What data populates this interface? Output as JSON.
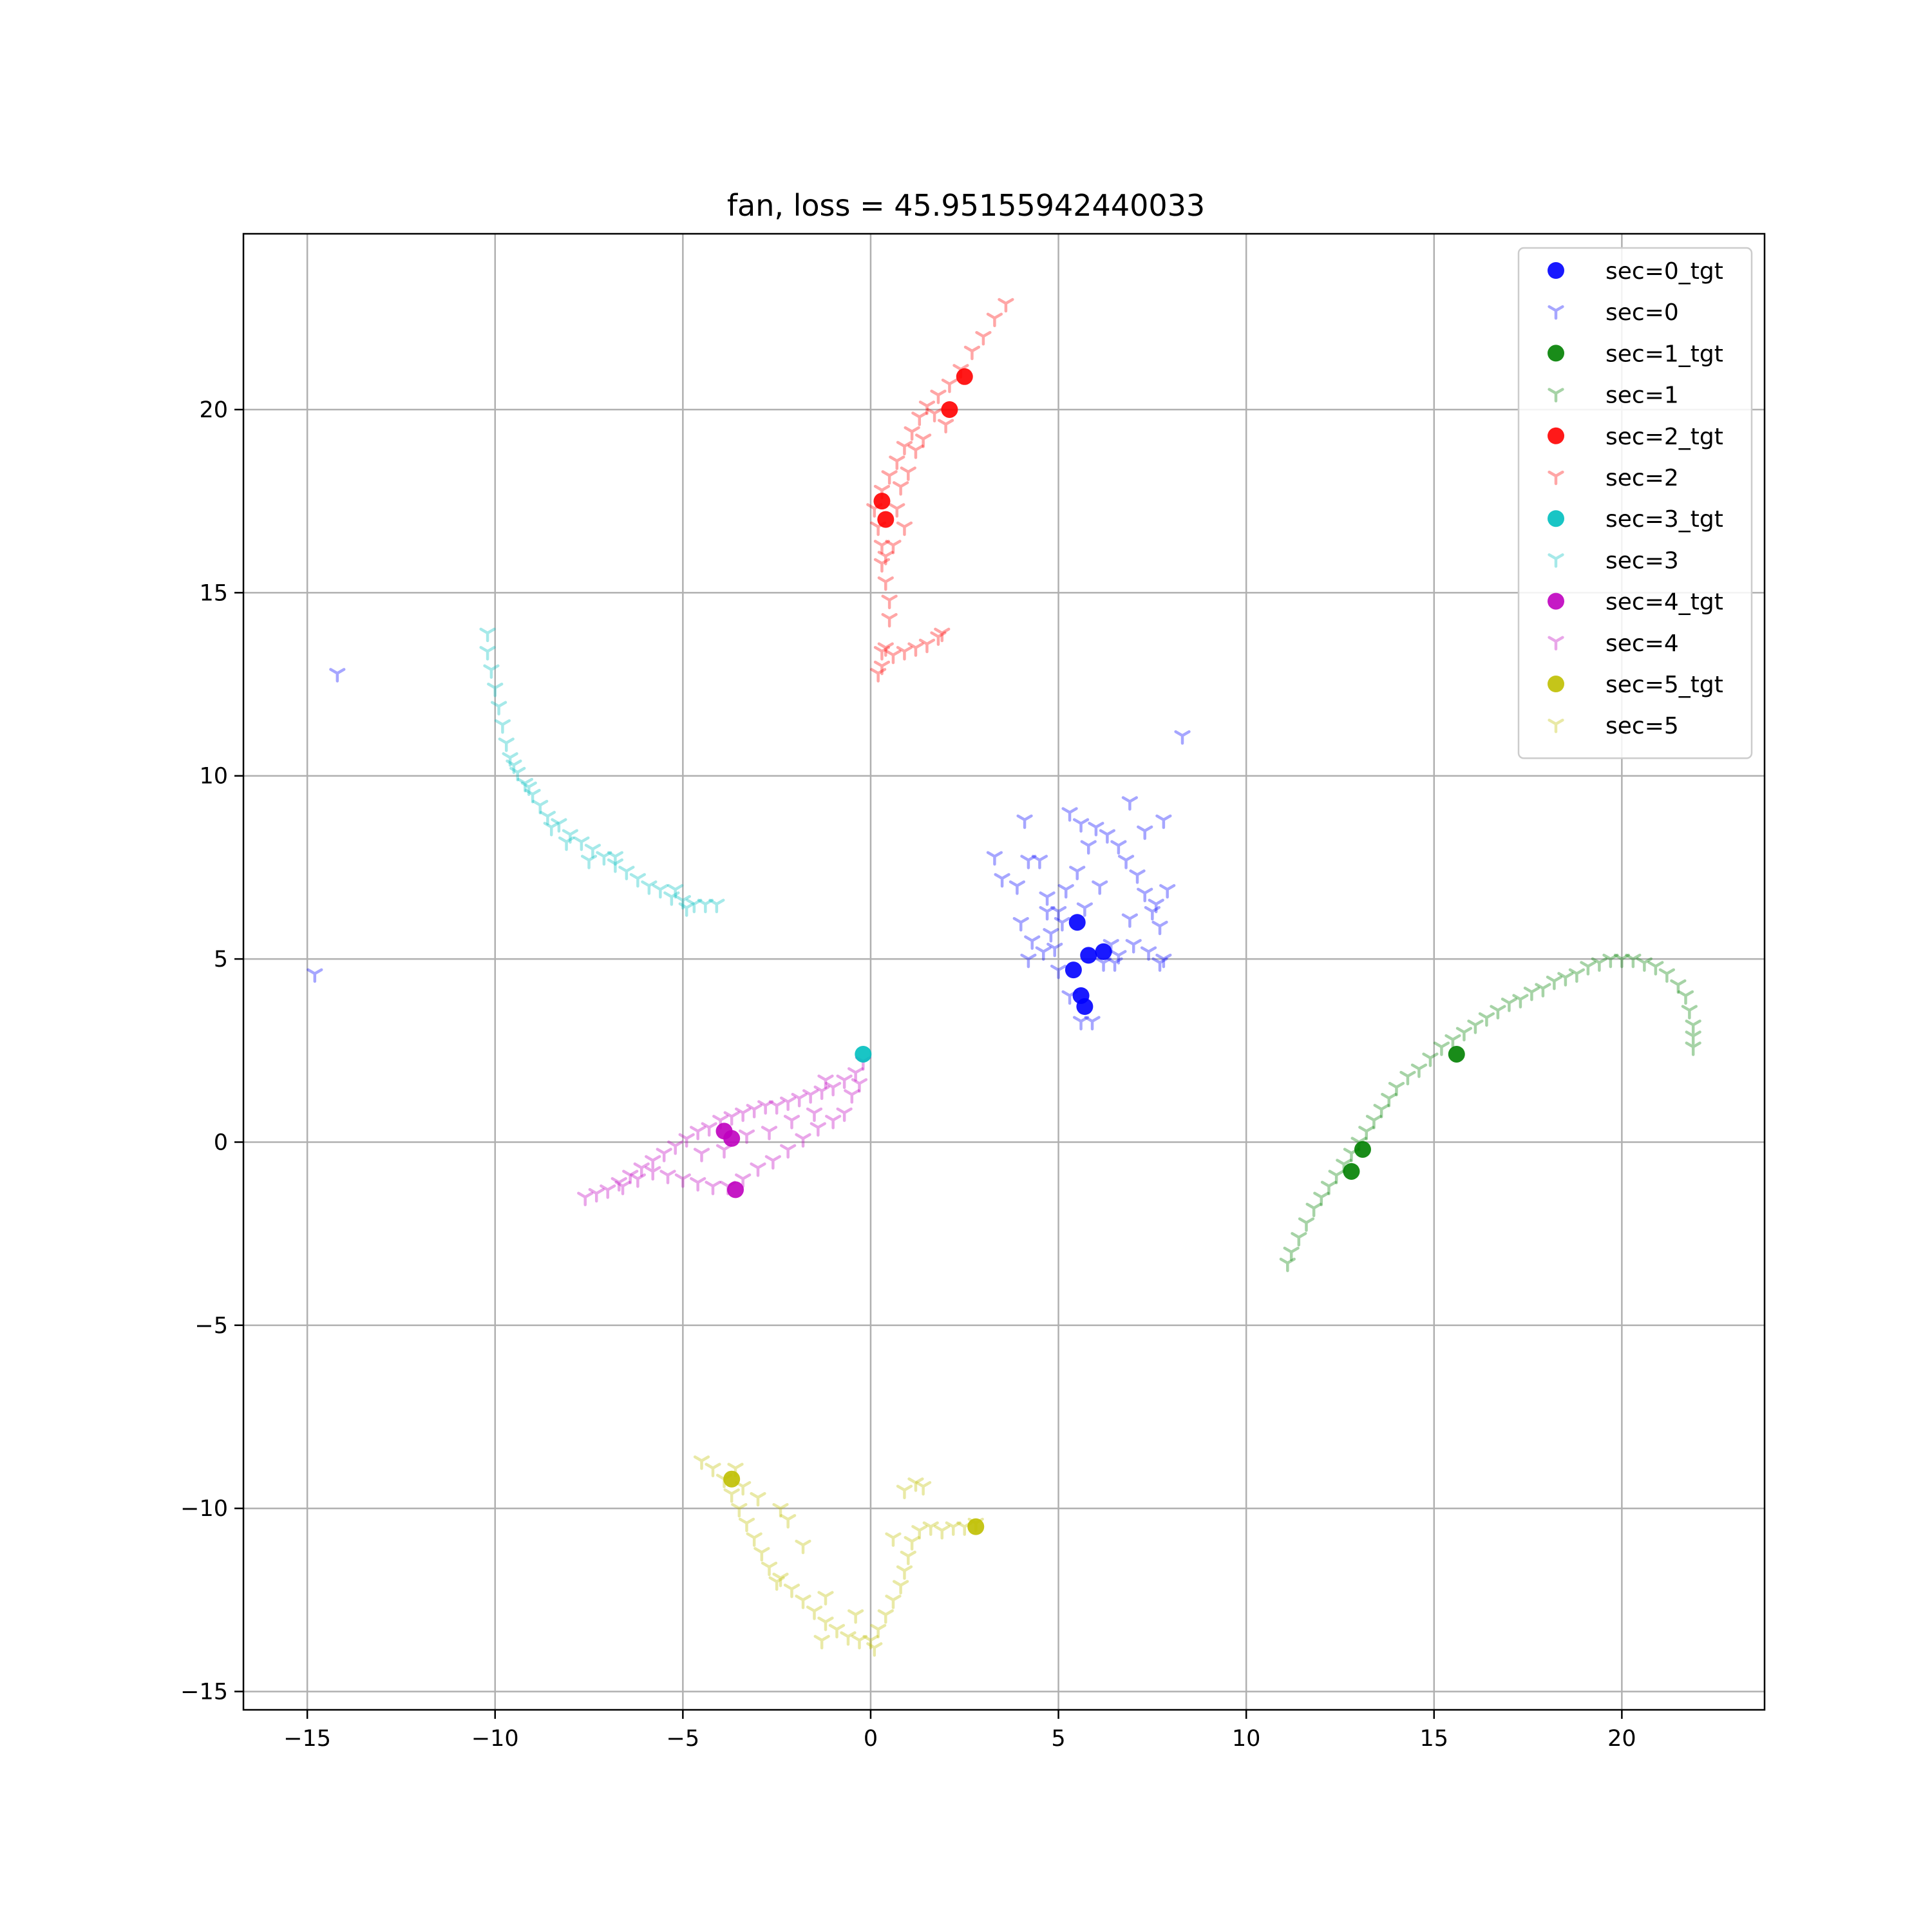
{
  "chart_data": {
    "type": "scatter",
    "title": "fan, loss = 45.95155942440033",
    "xlabel": "",
    "ylabel": "",
    "xlim": [
      -16.7,
      23.8
    ],
    "ylim": [
      -15.5,
      24.8
    ],
    "xticks": [
      -15,
      -10,
      -5,
      0,
      5,
      10,
      15,
      20
    ],
    "xtick_labels": [
      "−15",
      "−10",
      "−5",
      "0",
      "5",
      "10",
      "15",
      "20"
    ],
    "yticks": [
      -15,
      -10,
      -5,
      0,
      5,
      10,
      15,
      20
    ],
    "ytick_labels": [
      "−15",
      "−10",
      "−5",
      "0",
      "5",
      "10",
      "15",
      "20"
    ],
    "grid": true,
    "legend_position": "top-right",
    "series": [
      {
        "name": "sec=0_tgt",
        "color": "#0000ff",
        "marker": "circle",
        "alpha": 0.9,
        "points": [
          [
            5.4,
            4.7
          ],
          [
            5.6,
            4.0
          ],
          [
            5.7,
            3.7
          ],
          [
            6.2,
            5.2
          ],
          [
            5.5,
            6.0
          ],
          [
            5.8,
            5.1
          ]
        ]
      },
      {
        "name": "sec=0",
        "color": "#0000ff",
        "marker": "tri_down",
        "alpha": 0.35,
        "points": [
          [
            -14.2,
            12.8
          ],
          [
            -14.8,
            4.6
          ],
          [
            8.3,
            11.1
          ],
          [
            4.3,
            5.5
          ],
          [
            4.6,
            5.2
          ],
          [
            4.8,
            5.7
          ],
          [
            5.0,
            6.3
          ],
          [
            5.2,
            6.9
          ],
          [
            5.5,
            7.4
          ],
          [
            5.8,
            8.1
          ],
          [
            6.0,
            8.6
          ],
          [
            6.3,
            8.4
          ],
          [
            6.6,
            8.1
          ],
          [
            6.8,
            7.7
          ],
          [
            7.1,
            7.3
          ],
          [
            7.3,
            6.8
          ],
          [
            7.5,
            6.3
          ],
          [
            7.7,
            5.9
          ],
          [
            7.8,
            5.0
          ],
          [
            7.4,
            5.2
          ],
          [
            7.0,
            5.4
          ],
          [
            6.6,
            5.1
          ],
          [
            6.2,
            4.9
          ],
          [
            5.9,
            3.3
          ],
          [
            5.6,
            3.3
          ],
          [
            5.3,
            4.0
          ],
          [
            4.9,
            5.3
          ],
          [
            4.2,
            5.0
          ],
          [
            3.3,
            7.8
          ],
          [
            3.5,
            7.2
          ],
          [
            3.9,
            7.0
          ],
          [
            4.1,
            8.8
          ],
          [
            4.5,
            7.7
          ],
          [
            4.2,
            7.7
          ],
          [
            4.7,
            6.7
          ],
          [
            5.1,
            6.0
          ],
          [
            5.3,
            9.0
          ],
          [
            5.6,
            8.7
          ],
          [
            6.9,
            9.3
          ],
          [
            7.3,
            8.5
          ],
          [
            7.8,
            8.8
          ],
          [
            7.9,
            6.9
          ],
          [
            7.6,
            6.5
          ],
          [
            6.9,
            6.1
          ],
          [
            4.7,
            6.3
          ],
          [
            5.0,
            4.7
          ],
          [
            6.4,
            5.4
          ],
          [
            6.1,
            7.0
          ],
          [
            5.7,
            6.4
          ],
          [
            4.0,
            6.0
          ],
          [
            6.5,
            4.9
          ],
          [
            7.7,
            4.9
          ]
        ]
      },
      {
        "name": "sec=1_tgt",
        "color": "#008000",
        "marker": "circle",
        "alpha": 0.9,
        "points": [
          [
            12.8,
            -0.8
          ],
          [
            15.6,
            2.4
          ],
          [
            13.1,
            -0.2
          ]
        ]
      },
      {
        "name": "sec=1",
        "color": "#008000",
        "marker": "tri_down",
        "alpha": 0.35,
        "points": [
          [
            11.1,
            -3.3
          ],
          [
            11.2,
            -3.0
          ],
          [
            11.4,
            -2.6
          ],
          [
            11.6,
            -2.2
          ],
          [
            11.8,
            -1.8
          ],
          [
            12.0,
            -1.5
          ],
          [
            12.2,
            -1.2
          ],
          [
            12.4,
            -0.9
          ],
          [
            12.6,
            -0.6
          ],
          [
            12.8,
            -0.3
          ],
          [
            13.0,
            0.0
          ],
          [
            13.2,
            0.3
          ],
          [
            13.4,
            0.6
          ],
          [
            13.6,
            0.9
          ],
          [
            13.8,
            1.2
          ],
          [
            14.0,
            1.5
          ],
          [
            14.3,
            1.8
          ],
          [
            14.6,
            2.0
          ],
          [
            14.9,
            2.3
          ],
          [
            15.2,
            2.6
          ],
          [
            15.5,
            2.8
          ],
          [
            15.8,
            3.0
          ],
          [
            16.1,
            3.2
          ],
          [
            16.4,
            3.4
          ],
          [
            16.7,
            3.6
          ],
          [
            17.0,
            3.8
          ],
          [
            17.3,
            3.9
          ],
          [
            17.6,
            4.1
          ],
          [
            17.9,
            4.2
          ],
          [
            18.2,
            4.4
          ],
          [
            18.5,
            4.5
          ],
          [
            18.8,
            4.6
          ],
          [
            19.1,
            4.8
          ],
          [
            19.4,
            4.9
          ],
          [
            19.7,
            5.0
          ],
          [
            20.0,
            5.0
          ],
          [
            20.3,
            5.0
          ],
          [
            20.6,
            4.9
          ],
          [
            20.9,
            4.8
          ],
          [
            21.2,
            4.6
          ],
          [
            21.5,
            4.3
          ],
          [
            21.7,
            4.0
          ],
          [
            21.8,
            3.6
          ],
          [
            21.9,
            3.2
          ],
          [
            21.9,
            2.9
          ],
          [
            21.9,
            2.6
          ]
        ]
      },
      {
        "name": "sec=2_tgt",
        "color": "#ff0000",
        "marker": "circle",
        "alpha": 0.9,
        "points": [
          [
            0.3,
            17.5
          ],
          [
            2.5,
            20.9
          ],
          [
            2.1,
            20.0
          ],
          [
            0.4,
            17.0
          ]
        ]
      },
      {
        "name": "sec=2",
        "color": "#ff0000",
        "marker": "tri_down",
        "alpha": 0.35,
        "points": [
          [
            0.5,
            14.3
          ],
          [
            0.5,
            14.8
          ],
          [
            0.4,
            15.3
          ],
          [
            0.3,
            15.8
          ],
          [
            0.3,
            16.3
          ],
          [
            0.2,
            16.8
          ],
          [
            0.1,
            17.3
          ],
          [
            0.3,
            17.8
          ],
          [
            0.5,
            18.2
          ],
          [
            0.7,
            18.6
          ],
          [
            0.9,
            19.0
          ],
          [
            1.1,
            19.4
          ],
          [
            1.3,
            19.8
          ],
          [
            1.5,
            20.1
          ],
          [
            1.8,
            20.4
          ],
          [
            2.1,
            20.7
          ],
          [
            2.4,
            21.1
          ],
          [
            2.7,
            21.6
          ],
          [
            3.0,
            22.0
          ],
          [
            3.3,
            22.5
          ],
          [
            3.6,
            22.9
          ],
          [
            0.8,
            17.9
          ],
          [
            1.0,
            18.3
          ],
          [
            1.2,
            18.9
          ],
          [
            0.7,
            17.3
          ],
          [
            0.9,
            16.8
          ],
          [
            0.6,
            16.3
          ],
          [
            0.4,
            16.0
          ],
          [
            0.3,
            13.0
          ],
          [
            0.3,
            13.4
          ],
          [
            0.6,
            13.3
          ],
          [
            0.9,
            13.4
          ],
          [
            1.2,
            13.5
          ],
          [
            1.5,
            13.6
          ],
          [
            1.8,
            13.8
          ],
          [
            1.9,
            13.9
          ],
          [
            0.2,
            12.8
          ],
          [
            0.4,
            13.5
          ],
          [
            1.4,
            19.2
          ],
          [
            2.0,
            19.6
          ],
          [
            1.7,
            19.9
          ]
        ]
      },
      {
        "name": "sec=3_tgt",
        "color": "#00bfbf",
        "marker": "circle",
        "alpha": 0.9,
        "points": [
          [
            -0.2,
            2.4
          ]
        ]
      },
      {
        "name": "sec=3",
        "color": "#00bfbf",
        "marker": "tri_down",
        "alpha": 0.35,
        "points": [
          [
            -10.2,
            13.9
          ],
          [
            -10.2,
            13.4
          ],
          [
            -10.1,
            12.9
          ],
          [
            -10.0,
            12.4
          ],
          [
            -9.9,
            11.9
          ],
          [
            -9.8,
            11.4
          ],
          [
            -9.7,
            10.9
          ],
          [
            -9.6,
            10.5
          ],
          [
            -9.4,
            10.1
          ],
          [
            -9.2,
            9.8
          ],
          [
            -9.0,
            9.5
          ],
          [
            -8.8,
            9.2
          ],
          [
            -8.6,
            8.9
          ],
          [
            -8.3,
            8.7
          ],
          [
            -8.0,
            8.4
          ],
          [
            -7.7,
            8.2
          ],
          [
            -7.4,
            8.0
          ],
          [
            -7.1,
            7.8
          ],
          [
            -6.8,
            7.6
          ],
          [
            -6.5,
            7.4
          ],
          [
            -6.2,
            7.2
          ],
          [
            -5.9,
            7.0
          ],
          [
            -5.6,
            6.9
          ],
          [
            -5.3,
            6.7
          ],
          [
            -5.0,
            6.6
          ],
          [
            -4.7,
            6.5
          ],
          [
            -4.4,
            6.5
          ],
          [
            -4.1,
            6.5
          ],
          [
            -9.1,
            9.7
          ],
          [
            -6.8,
            7.8
          ],
          [
            -7.5,
            7.7
          ],
          [
            -8.1,
            8.2
          ],
          [
            -5.2,
            6.9
          ],
          [
            -4.9,
            6.4
          ],
          [
            -9.5,
            10.3
          ],
          [
            -8.5,
            8.6
          ]
        ]
      },
      {
        "name": "sec=4_tgt",
        "color": "#bf00bf",
        "marker": "circle",
        "alpha": 0.9,
        "points": [
          [
            -3.6,
            -1.3
          ],
          [
            -3.7,
            0.1
          ],
          [
            -3.9,
            0.3
          ]
        ]
      },
      {
        "name": "sec=4",
        "color": "#bf00bf",
        "marker": "tri_down",
        "alpha": 0.35,
        "points": [
          [
            -7.6,
            -1.5
          ],
          [
            -7.3,
            -1.4
          ],
          [
            -7.0,
            -1.3
          ],
          [
            -6.7,
            -1.1
          ],
          [
            -6.4,
            -0.9
          ],
          [
            -6.1,
            -0.7
          ],
          [
            -5.8,
            -0.5
          ],
          [
            -5.5,
            -0.3
          ],
          [
            -5.2,
            -0.1
          ],
          [
            -4.9,
            0.1
          ],
          [
            -4.6,
            0.3
          ],
          [
            -4.3,
            0.4
          ],
          [
            -4.0,
            0.6
          ],
          [
            -3.7,
            0.7
          ],
          [
            -3.4,
            0.8
          ],
          [
            -3.1,
            0.9
          ],
          [
            -2.8,
            1.0
          ],
          [
            -2.5,
            1.0
          ],
          [
            -2.2,
            1.1
          ],
          [
            -1.9,
            1.2
          ],
          [
            -1.6,
            1.3
          ],
          [
            -1.3,
            1.4
          ],
          [
            -1.0,
            1.5
          ],
          [
            -0.7,
            1.7
          ],
          [
            -0.4,
            1.9
          ],
          [
            -0.2,
            2.2
          ],
          [
            -0.3,
            1.6
          ],
          [
            -0.5,
            1.3
          ],
          [
            -0.7,
            0.8
          ],
          [
            -1.0,
            0.6
          ],
          [
            -1.4,
            0.4
          ],
          [
            -1.8,
            0.1
          ],
          [
            -2.2,
            -0.2
          ],
          [
            -2.6,
            -0.5
          ],
          [
            -3.0,
            -0.7
          ],
          [
            -3.4,
            -1.0
          ],
          [
            -3.8,
            -1.2
          ],
          [
            -4.2,
            -1.2
          ],
          [
            -4.6,
            -1.1
          ],
          [
            -5.0,
            -1.0
          ],
          [
            -5.4,
            -0.9
          ],
          [
            -5.8,
            -0.8
          ],
          [
            -6.2,
            -1.0
          ],
          [
            -6.6,
            -1.2
          ],
          [
            -4.5,
            -0.3
          ],
          [
            -3.9,
            -0.2
          ],
          [
            -3.3,
            0.2
          ],
          [
            -2.7,
            0.3
          ],
          [
            -2.1,
            0.6
          ],
          [
            -1.5,
            0.8
          ],
          [
            -1.2,
            1.7
          ]
        ]
      },
      {
        "name": "sec=5_tgt",
        "color": "#bfbf00",
        "marker": "circle",
        "alpha": 0.9,
        "points": [
          [
            2.8,
            -10.5
          ],
          [
            -3.7,
            -9.2
          ]
        ]
      },
      {
        "name": "sec=5",
        "color": "#bfbf00",
        "marker": "tri_down",
        "alpha": 0.35,
        "points": [
          [
            -4.5,
            -8.7
          ],
          [
            -4.2,
            -8.9
          ],
          [
            -3.9,
            -9.2
          ],
          [
            -3.7,
            -9.6
          ],
          [
            -3.5,
            -10.0
          ],
          [
            -3.3,
            -10.4
          ],
          [
            -3.1,
            -10.8
          ],
          [
            -2.9,
            -11.2
          ],
          [
            -2.7,
            -11.6
          ],
          [
            -2.4,
            -11.9
          ],
          [
            -2.1,
            -12.2
          ],
          [
            -1.8,
            -12.5
          ],
          [
            -1.5,
            -12.8
          ],
          [
            -1.2,
            -13.1
          ],
          [
            -0.9,
            -13.3
          ],
          [
            -0.6,
            -13.5
          ],
          [
            -0.3,
            -13.6
          ],
          [
            0.0,
            -13.6
          ],
          [
            0.2,
            -13.3
          ],
          [
            0.4,
            -12.9
          ],
          [
            0.6,
            -12.5
          ],
          [
            0.8,
            -12.1
          ],
          [
            0.9,
            -11.7
          ],
          [
            1.0,
            -11.3
          ],
          [
            1.1,
            -10.9
          ],
          [
            1.3,
            -10.6
          ],
          [
            1.6,
            -10.5
          ],
          [
            1.9,
            -10.6
          ],
          [
            2.2,
            -10.5
          ],
          [
            2.5,
            -10.5
          ],
          [
            2.8,
            -10.4
          ],
          [
            1.2,
            -9.3
          ],
          [
            1.4,
            -9.4
          ],
          [
            0.9,
            -9.5
          ],
          [
            -2.4,
            -10.0
          ],
          [
            -2.2,
            -10.3
          ],
          [
            -3.0,
            -9.7
          ],
          [
            -1.2,
            -12.4
          ],
          [
            -0.4,
            -12.9
          ],
          [
            -1.3,
            -13.6
          ],
          [
            0.1,
            -13.8
          ],
          [
            -2.5,
            -12.0
          ],
          [
            0.6,
            -10.8
          ],
          [
            -1.8,
            -11.0
          ],
          [
            -3.6,
            -8.9
          ],
          [
            -3.4,
            -9.4
          ]
        ]
      }
    ]
  }
}
